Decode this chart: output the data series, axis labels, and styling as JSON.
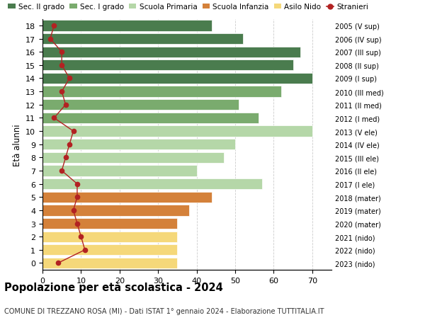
{
  "ages": [
    18,
    17,
    16,
    15,
    14,
    13,
    12,
    11,
    10,
    9,
    8,
    7,
    6,
    5,
    4,
    3,
    2,
    1,
    0
  ],
  "years": [
    "2005 (V sup)",
    "2006 (IV sup)",
    "2007 (III sup)",
    "2008 (II sup)",
    "2009 (I sup)",
    "2010 (III med)",
    "2011 (II med)",
    "2012 (I med)",
    "2013 (V ele)",
    "2014 (IV ele)",
    "2015 (III ele)",
    "2016 (II ele)",
    "2017 (I ele)",
    "2018 (mater)",
    "2019 (mater)",
    "2020 (mater)",
    "2021 (nido)",
    "2022 (nido)",
    "2023 (nido)"
  ],
  "bar_values": [
    44,
    52,
    67,
    65,
    70,
    62,
    51,
    56,
    70,
    50,
    47,
    40,
    57,
    44,
    38,
    35,
    35,
    35,
    35
  ],
  "bar_colors": [
    "#4a7c4e",
    "#4a7c4e",
    "#4a7c4e",
    "#4a7c4e",
    "#4a7c4e",
    "#7aab6e",
    "#7aab6e",
    "#7aab6e",
    "#b5d7a8",
    "#b5d7a8",
    "#b5d7a8",
    "#b5d7a8",
    "#b5d7a8",
    "#d4813a",
    "#d4813a",
    "#d4813a",
    "#f5d87a",
    "#f5d87a",
    "#f5d87a"
  ],
  "stranieri_values": [
    3,
    2,
    5,
    5,
    7,
    5,
    6,
    3,
    8,
    7,
    6,
    5,
    9,
    9,
    8,
    9,
    10,
    11,
    4
  ],
  "stranieri_color": "#b22222",
  "legend_labels": [
    "Sec. II grado",
    "Sec. I grado",
    "Scuola Primaria",
    "Scuola Infanzia",
    "Asilo Nido",
    "Stranieri"
  ],
  "legend_colors": [
    "#4a7c4e",
    "#7aab6e",
    "#b5d7a8",
    "#d4813a",
    "#f5d87a",
    "#b22222"
  ],
  "ylabel": "Età alunni",
  "title": "Popolazione per età scolastica - 2024",
  "subtitle": "COMUNE DI TREZZANO ROSA (MI) - Dati ISTAT 1° gennaio 2024 - Elaborazione TUTTITALIA.IT",
  "xlim": [
    0,
    75
  ],
  "xticks": [
    0,
    10,
    20,
    30,
    40,
    50,
    60,
    70
  ],
  "background_color": "#ffffff",
  "grid_color": "#cccccc"
}
